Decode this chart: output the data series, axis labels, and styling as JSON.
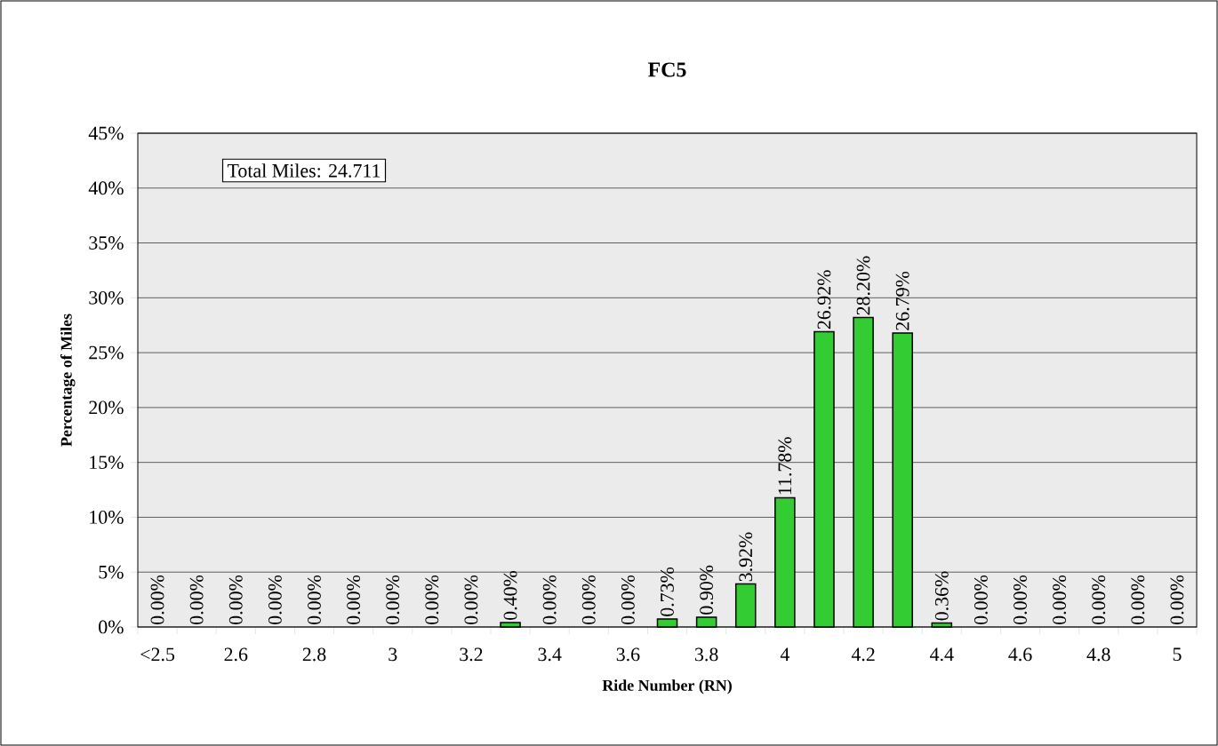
{
  "chart_data": {
    "type": "bar",
    "title": "FC5",
    "xlabel": "Ride Number (RN)",
    "ylabel": "Percentage of Miles",
    "categories": [
      "<2.5",
      null,
      "2.6",
      null,
      "2.8",
      null,
      "3",
      null,
      "3.2",
      null,
      "3.4",
      null,
      "3.6",
      null,
      "3.8",
      null,
      "4",
      null,
      "4.2",
      null,
      "4.4",
      null,
      "4.6",
      null,
      "4.8",
      null,
      "5"
    ],
    "values": [
      0,
      0,
      0,
      0,
      0,
      0,
      0,
      0,
      0,
      0.4,
      0,
      0,
      0,
      0.73,
      0.9,
      3.92,
      11.78,
      26.92,
      28.2,
      26.79,
      0.36,
      0,
      0,
      0,
      0,
      0,
      0
    ],
    "value_labels": [
      "0.00%",
      "0.00%",
      "0.00%",
      "0.00%",
      "0.00%",
      "0.00%",
      "0.00%",
      "0.00%",
      "0.00%",
      "0.40%",
      "0.00%",
      "0.00%",
      "0.00%",
      "0.73%",
      "0.90%",
      "3.92%",
      "11.78%",
      "26.92%",
      "28.20%",
      "26.79%",
      "0.36%",
      "0.00%",
      "0.00%",
      "0.00%",
      "0.00%",
      "0.00%",
      "0.00%"
    ],
    "color": "#33cc33",
    "ylim": [
      0,
      45
    ],
    "yticks": [
      {
        "value": 0,
        "label": "0%"
      },
      {
        "value": 5,
        "label": "5%"
      },
      {
        "value": 10,
        "label": "10%"
      },
      {
        "value": 15,
        "label": "15%"
      },
      {
        "value": 20,
        "label": "20%"
      },
      {
        "value": 25,
        "label": "25%"
      },
      {
        "value": 30,
        "label": "30%"
      },
      {
        "value": 35,
        "label": "35%"
      },
      {
        "value": 40,
        "label": "40%"
      },
      {
        "value": 45,
        "label": "45%"
      }
    ],
    "grid": "y",
    "annotations": [
      "Total Miles: 24.711"
    ]
  }
}
